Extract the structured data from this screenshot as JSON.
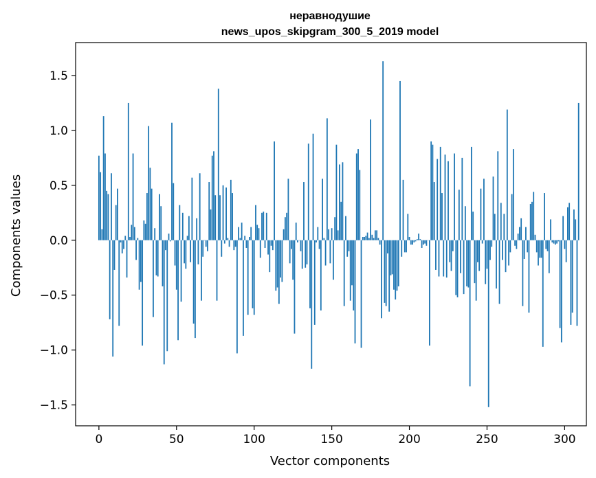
{
  "chart_data": {
    "type": "bar",
    "title": "неравнодушие\nnews_upos_skipgram_300_5_2019 model",
    "title_lines": [
      "неравнодушие",
      "news_upos_skipgram_300_5_2019 model"
    ],
    "xlabel": "Vector components",
    "ylabel": "Components values",
    "xlim": [
      -15,
      314
    ],
    "ylim": [
      -1.69,
      1.8
    ],
    "xticks": [
      0,
      50,
      100,
      150,
      200,
      250,
      300
    ],
    "xtick_labels": [
      "0",
      "50",
      "100",
      "150",
      "200",
      "250",
      "300"
    ],
    "yticks": [
      -1.5,
      -1.0,
      -0.5,
      0.0,
      0.5,
      1.0,
      1.5
    ],
    "ytick_labels": [
      "−1.5",
      "−1.0",
      "−0.5",
      "0.0",
      "0.5",
      "1.0",
      "1.5"
    ],
    "grid": false,
    "bar_color": "#1f77b4",
    "values": [
      0.77,
      0.62,
      0.1,
      1.13,
      0.79,
      0.45,
      0.42,
      -0.72,
      0.61,
      -1.06,
      -0.27,
      0.32,
      0.47,
      -0.78,
      -0.02,
      -0.12,
      -0.08,
      0.04,
      -0.34,
      1.25,
      0.03,
      0.14,
      0.79,
      0.12,
      -0.18,
      0.02,
      -0.45,
      -0.38,
      -0.96,
      0.18,
      0.15,
      0.43,
      1.04,
      0.66,
      0.47,
      -0.7,
      0.11,
      -0.32,
      -0.33,
      0.42,
      0.31,
      -0.42,
      -1.13,
      -0.09,
      -1.01,
      0.06,
      -0.01,
      1.07,
      0.52,
      -0.23,
      -0.45,
      -0.91,
      0.32,
      -0.56,
      0.25,
      -0.21,
      -0.26,
      0.04,
      0.22,
      -0.2,
      0.57,
      -0.76,
      -0.89,
      0.2,
      -0.22,
      0.61,
      -0.55,
      -0.15,
      0.0,
      -0.06,
      -0.1,
      0.53,
      0.28,
      0.77,
      0.81,
      0.41,
      -0.55,
      1.38,
      0.41,
      -0.15,
      0.5,
      -0.03,
      0.48,
      0.02,
      -0.06,
      0.55,
      0.43,
      -0.09,
      -0.06,
      -1.03,
      0.12,
      0.02,
      0.16,
      -0.87,
      0.04,
      -0.07,
      -0.68,
      0.03,
      0.12,
      -0.62,
      -0.68,
      0.32,
      0.14,
      0.11,
      -0.16,
      0.25,
      0.26,
      -0.07,
      0.25,
      -0.13,
      -0.29,
      -0.05,
      -0.09,
      0.9,
      -0.46,
      -0.43,
      -0.58,
      -0.34,
      -0.38,
      0.1,
      0.21,
      0.25,
      0.56,
      -0.21,
      -0.08,
      -0.36,
      -0.85,
      0.16,
      -0.02,
      0.0,
      -0.1,
      -0.26,
      0.53,
      -0.25,
      -0.22,
      0.88,
      -0.62,
      -1.17,
      0.97,
      -0.77,
      -0.02,
      0.12,
      -0.08,
      -0.64,
      0.56,
      0.02,
      -0.23,
      1.11,
      0.1,
      -0.21,
      0.11,
      -0.36,
      0.21,
      0.87,
      0.09,
      0.69,
      0.35,
      0.71,
      -0.6,
      0.22,
      -0.15,
      -0.1,
      -0.55,
      -0.41,
      -0.64,
      -0.94,
      0.79,
      0.83,
      0.64,
      -0.98,
      0.03,
      0.03,
      0.04,
      0.07,
      0.02,
      1.1,
      0.05,
      0.02,
      0.09,
      0.09,
      0.02,
      -0.04,
      -0.71,
      1.63,
      -0.57,
      -0.6,
      -0.12,
      -0.65,
      -0.32,
      -0.31,
      -0.45,
      -0.54,
      -0.46,
      -0.42,
      1.45,
      -0.15,
      0.55,
      -0.11,
      -0.11,
      0.24,
      0.03,
      -0.04,
      -0.04,
      -0.02,
      -0.01,
      0.01,
      0.06,
      0.01,
      -0.07,
      -0.04,
      -0.03,
      -0.05,
      0.0,
      -0.96,
      0.9,
      0.87,
      0.53,
      -0.27,
      0.74,
      -0.33,
      0.85,
      0.43,
      -0.33,
      0.78,
      -0.34,
      0.72,
      -0.2,
      -0.28,
      -0.1,
      0.79,
      -0.5,
      -0.52,
      0.46,
      -0.3,
      0.75,
      -0.49,
      0.31,
      -0.42,
      -0.43,
      -1.33,
      0.85,
      0.26,
      -0.39,
      -0.55,
      -0.2,
      -0.28,
      0.47,
      -0.03,
      0.56,
      -0.4,
      -0.26,
      -1.52,
      -0.18,
      -0.06,
      0.58,
      0.24,
      -0.44,
      0.81,
      -0.58,
      0.34,
      -0.18,
      0.24,
      -0.29,
      1.19,
      -0.23,
      -0.11,
      0.42,
      0.83,
      -0.05,
      -0.08,
      0.06,
      0.12,
      0.2,
      -0.6,
      -0.17,
      0.12,
      -0.11,
      -0.66,
      0.33,
      0.35,
      0.44,
      0.05,
      -0.11,
      -0.23,
      -0.16,
      -0.16,
      -0.97,
      0.43,
      -0.08,
      -0.1,
      -0.3,
      0.19,
      -0.02,
      -0.03,
      -0.04,
      -0.03,
      -0.01,
      -0.8,
      -0.93,
      0.22,
      -0.08,
      -0.2,
      0.3,
      0.34,
      -0.77,
      -0.66,
      0.28,
      0.19,
      -0.78,
      1.25
    ]
  }
}
